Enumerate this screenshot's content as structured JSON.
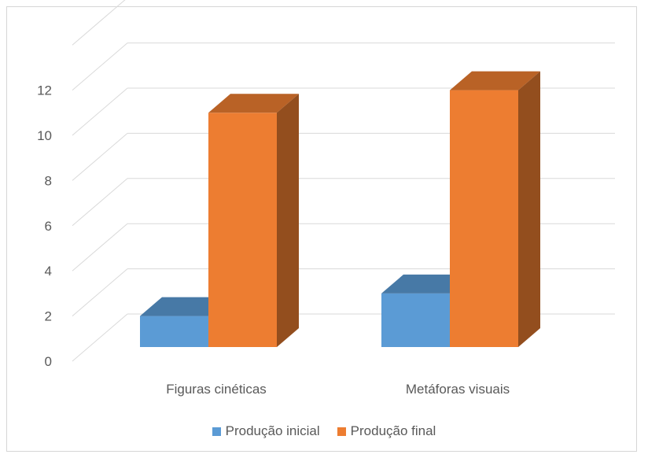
{
  "chart_data": {
    "type": "bar",
    "style": "3d-clustered-column",
    "categories": [
      "Figuras cinéticas",
      "Metáforas visuais"
    ],
    "series": [
      {
        "name": "Produção inicial",
        "values": [
          2,
          3
        ],
        "color": "#5B9BD5"
      },
      {
        "name": "Produção final",
        "values": [
          11,
          12
        ],
        "color": "#ED7D31"
      }
    ],
    "ylim": [
      0,
      12
    ],
    "yticks": [
      0,
      2,
      4,
      6,
      8,
      10,
      12
    ],
    "grid": true,
    "legend_position": "bottom"
  },
  "legend": {
    "initial": {
      "label": "Produção inicial",
      "color": "#5B9BD5"
    },
    "final": {
      "label": "Produção final",
      "color": "#ED7D31"
    }
  }
}
